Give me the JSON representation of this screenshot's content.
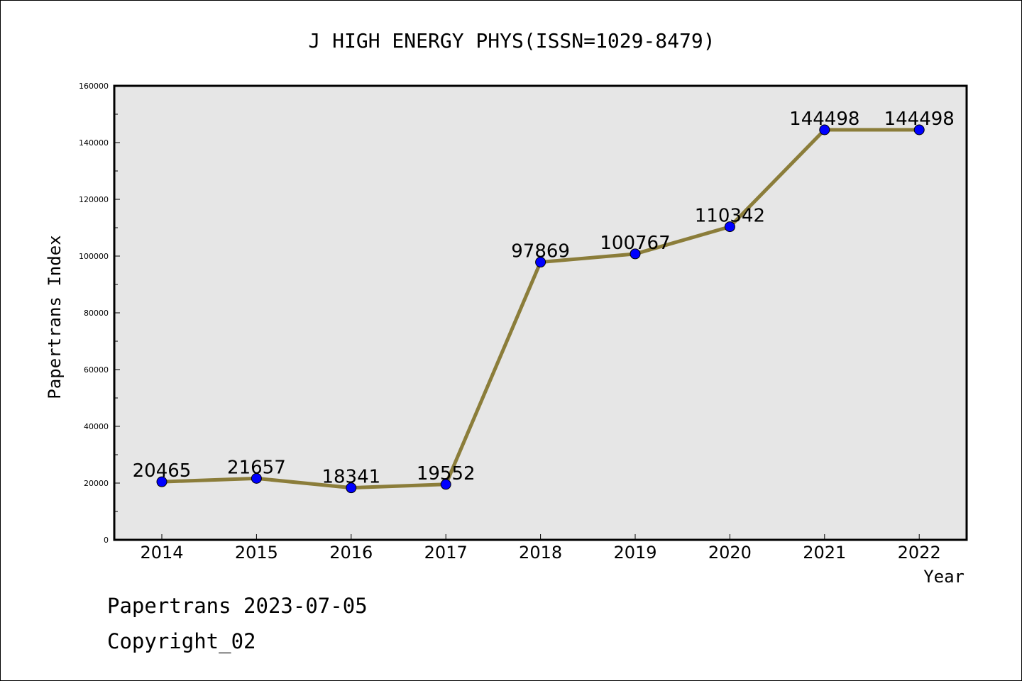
{
  "chart_data": {
    "type": "line",
    "title": "J HIGH ENERGY PHYS(ISSN=1029-8479)",
    "xlabel": "Year",
    "ylabel": "Papertrans Index",
    "categories": [
      "2014",
      "2015",
      "2016",
      "2017",
      "2018",
      "2019",
      "2020",
      "2021",
      "2022"
    ],
    "series": [
      {
        "values": [
          20465,
          21657,
          18341,
          19552,
          97869,
          100767,
          110342,
          144498,
          144498
        ]
      }
    ],
    "data_labels": [
      "20465",
      "21657",
      "18341",
      "19552",
      "97869",
      "100767",
      "110342",
      "144498",
      "144498"
    ],
    "ylim": [
      0,
      160000
    ],
    "yticks": [
      0,
      20000,
      40000,
      60000,
      80000,
      100000,
      120000,
      140000,
      160000
    ],
    "ytick_labels": [
      "0",
      "20000",
      "40000",
      "60000",
      "80000",
      "100000",
      "120000",
      "140000",
      "160000"
    ],
    "grid": false,
    "colors": {
      "line": "#8b7d3a",
      "marker": "#0000ff",
      "plot_background": "#e6e6e6"
    }
  },
  "footer": {
    "date_line": "Papertrans 2023-07-05",
    "copyright": "Copyright_02"
  }
}
